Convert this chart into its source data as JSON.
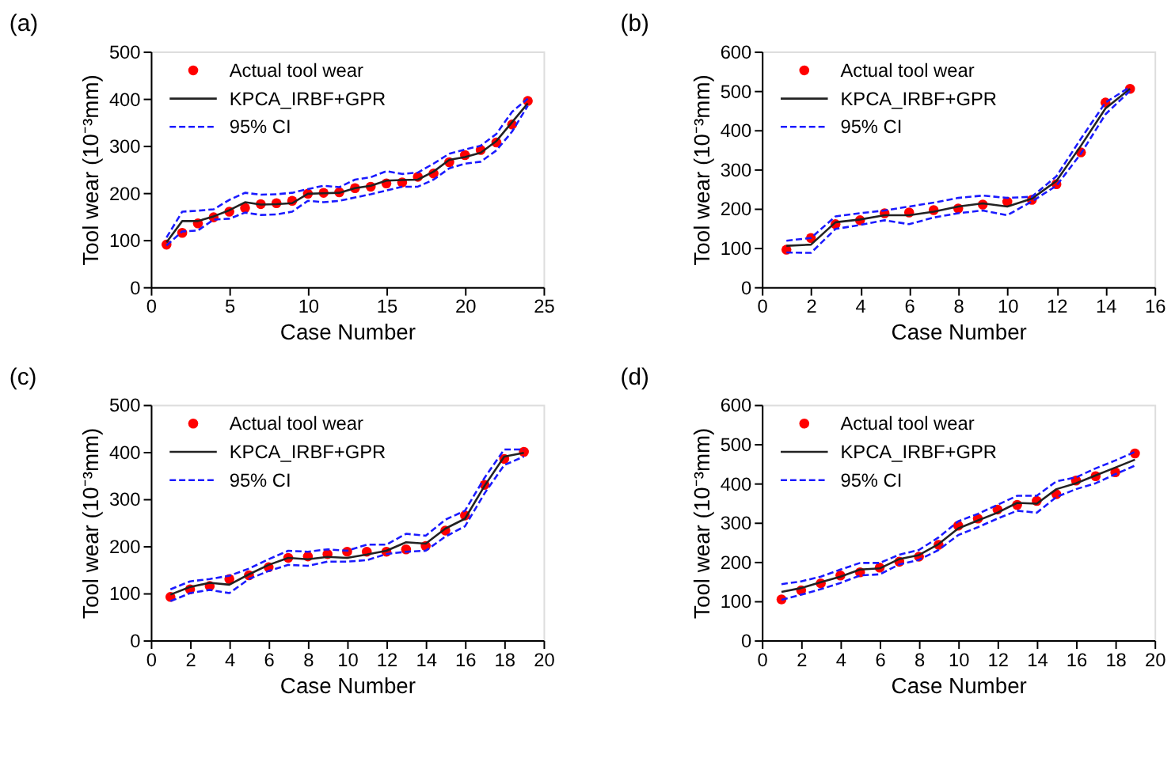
{
  "chart_data": [
    {
      "type": "line",
      "title": "(a)",
      "xlabel": "Case Number",
      "ylabel": "Tool wear (10⁻³mm)",
      "x": [
        1,
        2,
        3,
        4,
        5,
        6,
        7,
        8,
        9,
        10,
        11,
        12,
        13,
        14,
        15,
        16,
        17,
        18,
        19,
        20,
        21,
        22,
        23,
        24
      ],
      "xlim": [
        0,
        25
      ],
      "xticks": [
        0,
        5,
        10,
        15,
        20,
        25
      ],
      "ylim": [
        0,
        500
      ],
      "yticks": [
        0,
        100,
        200,
        300,
        400,
        500
      ],
      "grid": false,
      "legend": "top left",
      "series": [
        {
          "name": "Actual tool wear",
          "type": "scatter",
          "marker": "circle",
          "color": "#ff0000",
          "values": [
            90,
            115,
            135,
            148,
            160,
            168,
            176,
            178,
            183,
            198,
            200,
            201,
            210,
            213,
            220,
            222,
            234,
            241,
            265,
            280,
            291,
            307,
            345,
            395
          ]
        },
        {
          "name": "KPCA_IRBF+GPR",
          "line_style": "solid",
          "color": "#222222",
          "values": [
            95,
            140,
            140,
            150,
            163,
            180,
            175,
            176,
            178,
            198,
            199,
            200,
            210,
            215,
            226,
            227,
            228,
            245,
            270,
            276,
            285,
            310,
            350,
            390
          ]
        },
        {
          "name": "95% CI",
          "line_style": "dashed",
          "color": "#1a1aff",
          "values": [
            105,
            160,
            162,
            165,
            185,
            200,
            196,
            197,
            200,
            208,
            215,
            212,
            228,
            233,
            246,
            240,
            243,
            262,
            283,
            292,
            300,
            325,
            372,
            400
          ]
        },
        {
          "line_style": "dashed",
          "color": "#1a1aff",
          "values": [
            88,
            118,
            120,
            143,
            145,
            158,
            153,
            154,
            160,
            183,
            180,
            183,
            190,
            197,
            205,
            213,
            213,
            228,
            252,
            262,
            266,
            290,
            330,
            385
          ]
        }
      ]
    },
    {
      "type": "line",
      "title": "(b)",
      "xlabel": "Case Number",
      "ylabel": "Tool wear (10⁻³mm)",
      "x": [
        1,
        2,
        3,
        4,
        5,
        6,
        7,
        8,
        9,
        10,
        11,
        12,
        13,
        14,
        15
      ],
      "xlim": [
        0,
        16
      ],
      "xticks": [
        0,
        2,
        4,
        6,
        8,
        10,
        12,
        14,
        16
      ],
      "ylim": [
        0,
        600
      ],
      "yticks": [
        0,
        100,
        200,
        300,
        400,
        500,
        600
      ],
      "grid": false,
      "legend": "top left",
      "series": [
        {
          "name": "Actual tool wear",
          "type": "scatter",
          "marker": "circle",
          "color": "#ff0000",
          "values": [
            95,
            125,
            160,
            170,
            188,
            190,
            196,
            200,
            210,
            217,
            222,
            262,
            343,
            470,
            505
          ]
        },
        {
          "name": "KPCA_IRBF+GPR",
          "line_style": "solid",
          "color": "#222222",
          "values": [
            105,
            108,
            165,
            172,
            183,
            183,
            192,
            205,
            213,
            205,
            225,
            270,
            360,
            455,
            505
          ]
        },
        {
          "name": "95% CI",
          "line_style": "dashed",
          "color": "#1a1aff",
          "values": [
            118,
            125,
            180,
            188,
            195,
            205,
            215,
            227,
            233,
            227,
            230,
            282,
            378,
            470,
            510
          ]
        },
        {
          "line_style": "dashed",
          "color": "#1a1aff",
          "values": [
            88,
            87,
            148,
            158,
            170,
            160,
            177,
            188,
            195,
            183,
            218,
            258,
            340,
            440,
            500
          ]
        }
      ]
    },
    {
      "type": "line",
      "title": "(c)",
      "xlabel": "Case Number",
      "ylabel": "Tool wear (10⁻³mm)",
      "x": [
        1,
        2,
        3,
        4,
        5,
        6,
        7,
        8,
        9,
        10,
        11,
        12,
        13,
        14,
        15,
        16,
        17,
        18,
        19
      ],
      "xlim": [
        0,
        20
      ],
      "xticks": [
        0,
        2,
        4,
        6,
        8,
        10,
        12,
        14,
        16,
        18,
        20
      ],
      "ylim": [
        0,
        500
      ],
      "yticks": [
        0,
        100,
        200,
        300,
        400,
        500
      ],
      "grid": false,
      "legend": "top left",
      "series": [
        {
          "name": "Actual tool wear",
          "type": "scatter",
          "marker": "circle",
          "color": "#ff0000",
          "values": [
            92,
            108,
            115,
            130,
            138,
            155,
            175,
            178,
            183,
            188,
            188,
            188,
            193,
            200,
            233,
            265,
            330,
            385,
            400
          ]
        },
        {
          "name": "KPCA_IRBF+GPR",
          "line_style": "solid",
          "color": "#222222",
          "values": [
            97,
            113,
            122,
            118,
            140,
            160,
            175,
            172,
            177,
            175,
            182,
            190,
            208,
            205,
            237,
            258,
            328,
            390,
            398
          ]
        },
        {
          "name": "95% CI",
          "line_style": "dashed",
          "color": "#1a1aff",
          "values": [
            108,
            125,
            130,
            137,
            152,
            172,
            190,
            188,
            193,
            190,
            203,
            203,
            226,
            222,
            256,
            275,
            345,
            405,
            405
          ]
        },
        {
          "line_style": "dashed",
          "color": "#1a1aff",
          "values": [
            83,
            100,
            107,
            100,
            130,
            147,
            160,
            158,
            167,
            167,
            170,
            183,
            188,
            190,
            220,
            242,
            312,
            372,
            390
          ]
        }
      ]
    },
    {
      "type": "line",
      "title": "(d)",
      "xlabel": "Case Number",
      "ylabel": "Tool wear (10⁻³mm)",
      "x": [
        1,
        2,
        3,
        4,
        5,
        6,
        7,
        8,
        9,
        10,
        11,
        12,
        13,
        14,
        15,
        16,
        17,
        18,
        19
      ],
      "xlim": [
        0,
        20
      ],
      "xticks": [
        0,
        2,
        4,
        6,
        8,
        10,
        12,
        14,
        16,
        18,
        20
      ],
      "ylim": [
        0,
        600
      ],
      "yticks": [
        0,
        100,
        200,
        300,
        400,
        500,
        600
      ],
      "grid": false,
      "legend": "top left",
      "series": [
        {
          "name": "Actual tool wear",
          "type": "scatter",
          "marker": "circle",
          "color": "#ff0000",
          "values": [
            104,
            127,
            145,
            165,
            173,
            185,
            200,
            213,
            243,
            292,
            310,
            333,
            345,
            355,
            372,
            407,
            418,
            428,
            476
          ]
        },
        {
          "name": "KPCA_IRBF+GPR",
          "line_style": "solid",
          "color": "#222222",
          "values": [
            123,
            133,
            148,
            162,
            180,
            183,
            207,
            217,
            245,
            285,
            305,
            325,
            350,
            348,
            385,
            400,
            420,
            440,
            460
          ]
        },
        {
          "name": "95% CI",
          "line_style": "dashed",
          "color": "#1a1aff",
          "values": [
            143,
            150,
            162,
            180,
            197,
            197,
            218,
            230,
            262,
            303,
            322,
            345,
            368,
            368,
            405,
            415,
            438,
            458,
            480
          ]
        },
        {
          "line_style": "dashed",
          "color": "#1a1aff",
          "values": [
            103,
            116,
            130,
            146,
            165,
            168,
            193,
            205,
            230,
            268,
            288,
            310,
            330,
            325,
            365,
            385,
            400,
            423,
            445
          ]
        }
      ]
    }
  ]
}
